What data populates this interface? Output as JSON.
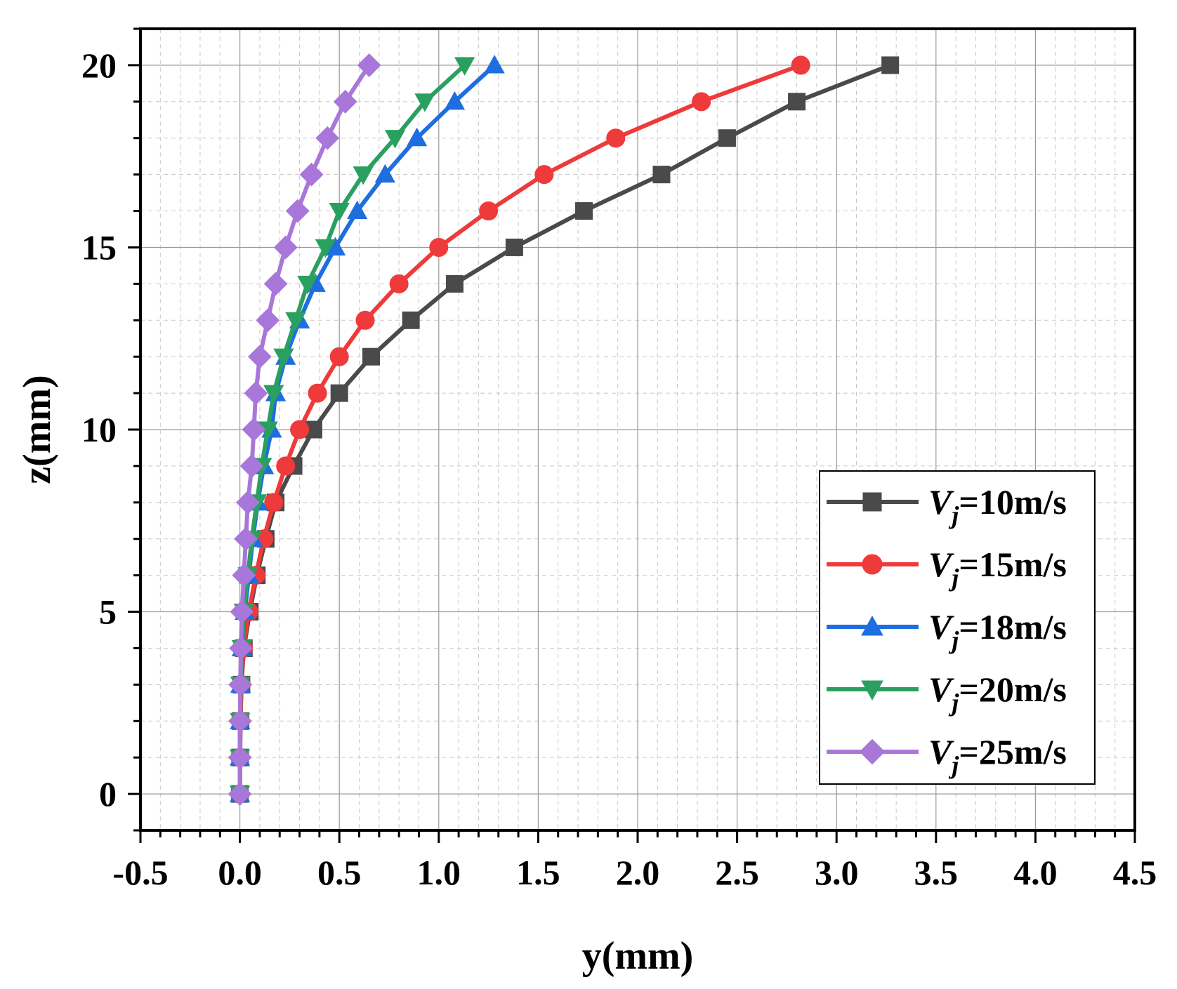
{
  "chart_data": {
    "type": "line",
    "title": "",
    "xlabel": "y(mm)",
    "ylabel": "z(mm)",
    "xlim": [
      -0.5,
      4.5
    ],
    "ylim": [
      -1,
      21
    ],
    "x_ticks": [
      -0.5,
      0.0,
      0.5,
      1.0,
      1.5,
      2.0,
      2.5,
      3.0,
      3.5,
      4.0,
      4.5
    ],
    "x_tick_labels": [
      "-0.5",
      "0.0",
      "0.5",
      "1.0",
      "1.5",
      "2.0",
      "2.5",
      "3.0",
      "3.5",
      "4.0",
      "4.5"
    ],
    "y_ticks": [
      0,
      5,
      10,
      15,
      20
    ],
    "y_tick_labels": [
      "0",
      "5",
      "10",
      "15",
      "20"
    ],
    "grid": true,
    "legend_position": "center-right",
    "z": [
      0,
      1,
      2,
      3,
      4,
      5,
      6,
      7,
      8,
      9,
      10,
      11,
      12,
      13,
      14,
      15,
      16,
      17,
      18,
      19,
      20
    ],
    "series": [
      {
        "name": "Vj=10m/s",
        "legend_main": "V",
        "legend_sub": "j",
        "legend_rest": "=10m/s",
        "color": "#4a4a4a",
        "marker": "square",
        "y": [
          0,
          0.001,
          0.003,
          0.008,
          0.02,
          0.05,
          0.085,
          0.13,
          0.18,
          0.27,
          0.37,
          0.5,
          0.66,
          0.86,
          1.08,
          1.38,
          1.73,
          2.12,
          2.45,
          2.8,
          3.27
        ]
      },
      {
        "name": "Vj=15m/s",
        "legend_main": "V",
        "legend_sub": "j",
        "legend_rest": "=15m/s",
        "color": "#ee3a3a",
        "marker": "circle",
        "y": [
          0,
          0.001,
          0.003,
          0.007,
          0.018,
          0.045,
          0.08,
          0.12,
          0.17,
          0.23,
          0.3,
          0.39,
          0.5,
          0.63,
          0.8,
          1.0,
          1.25,
          1.53,
          1.89,
          2.32,
          2.82
        ]
      },
      {
        "name": "Vj=18m/s",
        "legend_main": "V",
        "legend_sub": "j",
        "legend_rest": "=18m/s",
        "color": "#1e6ee0",
        "marker": "triangle-up",
        "y": [
          0,
          0.0,
          0.001,
          0.003,
          0.01,
          0.025,
          0.045,
          0.065,
          0.09,
          0.12,
          0.16,
          0.18,
          0.23,
          0.3,
          0.38,
          0.48,
          0.59,
          0.73,
          0.89,
          1.08,
          1.28
        ]
      },
      {
        "name": "Vj=20m/s",
        "legend_main": "V",
        "legend_sub": "j",
        "legend_rest": "=20m/s",
        "color": "#2aa060",
        "marker": "triangle-down",
        "y": [
          0,
          0.0,
          0.001,
          0.003,
          0.01,
          0.02,
          0.04,
          0.06,
          0.085,
          0.11,
          0.14,
          0.17,
          0.22,
          0.28,
          0.34,
          0.43,
          0.5,
          0.62,
          0.78,
          0.93,
          1.13
        ]
      },
      {
        "name": "Vj=25m/s",
        "legend_main": "V",
        "legend_sub": "j",
        "legend_rest": "=25m/s",
        "color": "#a877d9",
        "marker": "diamond",
        "y": [
          0,
          0.0,
          0.001,
          0.002,
          0.005,
          0.01,
          0.02,
          0.03,
          0.04,
          0.06,
          0.07,
          0.08,
          0.1,
          0.14,
          0.18,
          0.23,
          0.29,
          0.36,
          0.44,
          0.53,
          0.65
        ]
      }
    ]
  }
}
